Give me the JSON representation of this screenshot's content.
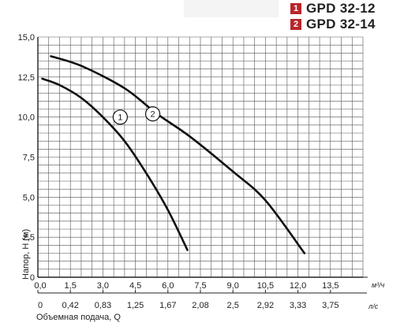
{
  "legend": [
    {
      "num": "1",
      "label": "GPD 32-12",
      "color": "#b8262c"
    },
    {
      "num": "2",
      "label": "GPD 32-14",
      "color": "#b8262c"
    }
  ],
  "chart_data": {
    "type": "line",
    "ylabel": "Напор, Н (м)",
    "xlabel": "Объемная подача, Q",
    "x_unit": "м³/ч",
    "x2_unit": "л/с",
    "xlim": [
      0,
      15
    ],
    "ylim": [
      0,
      15
    ],
    "x_ticks": [
      "0,0",
      "1,5",
      "3,0",
      "4,5",
      "6,0",
      "7,5",
      "9,0",
      "10,5",
      "12,0",
      "13,5"
    ],
    "x2_ticks": [
      "0",
      "0,42",
      "0,83",
      "1,25",
      "1,67",
      "2,08",
      "2,5",
      "2,92",
      "3,33",
      "3,75"
    ],
    "y_ticks": [
      "0",
      "2,5",
      "5,0",
      "7,5",
      "10,0",
      "12,5",
      "15,0"
    ],
    "grid": true,
    "series": [
      {
        "name": "1",
        "points": [
          [
            0.2,
            12.4
          ],
          [
            1.0,
            12.0
          ],
          [
            2.0,
            11.2
          ],
          [
            3.0,
            10.0
          ],
          [
            4.0,
            8.5
          ],
          [
            5.0,
            6.5
          ],
          [
            6.0,
            4.2
          ],
          [
            6.9,
            1.7
          ]
        ]
      },
      {
        "name": "2",
        "points": [
          [
            0.6,
            13.8
          ],
          [
            2.0,
            13.2
          ],
          [
            4.0,
            11.8
          ],
          [
            5.5,
            10.2
          ],
          [
            7.0,
            8.8
          ],
          [
            9.0,
            6.6
          ],
          [
            10.5,
            4.8
          ],
          [
            12.3,
            1.5
          ]
        ]
      }
    ]
  }
}
